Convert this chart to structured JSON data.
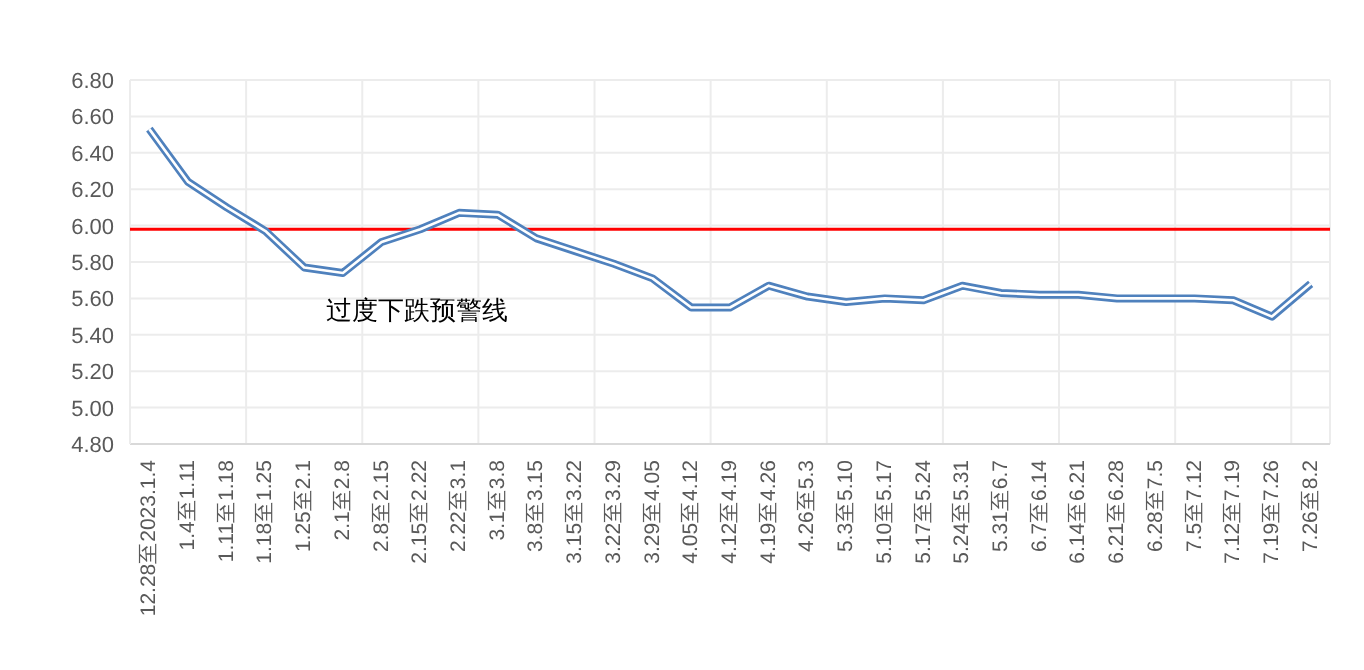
{
  "chart_data": {
    "type": "line",
    "categories": [
      "12.28至2023.1.4",
      "1.4至1.11",
      "1.11至1.18",
      "1.18至1.25",
      "1.25至2.1",
      "2.1至2.8",
      "2.8至2.15",
      "2.15至2.22",
      "2.22至3.1",
      "3.1至3.8",
      "3.8至3.15",
      "3.15至3.22",
      "3.22至3.29",
      "3.29至4.05",
      "4.05至4.12",
      "4.12至4.19",
      "4.19至4.26",
      "4.26至5.3",
      "5.3至5.10",
      "5.10至5.17",
      "5.17至5.24",
      "5.24至5.31",
      "5.31至6.7",
      "6.7至6.14",
      "6.14至6.21",
      "6.21至6.28",
      "6.28至7.5",
      "7.5至7.12",
      "7.12至7.19",
      "7.19至7.26",
      "7.26至8.2"
    ],
    "series": [
      {
        "color": "#4f81bd",
        "values": [
          6.53,
          6.24,
          6.1,
          5.97,
          5.77,
          5.74,
          5.91,
          5.98,
          6.07,
          6.06,
          5.93,
          5.86,
          5.79,
          5.71,
          5.55,
          5.55,
          5.67,
          5.61,
          5.58,
          5.6,
          5.59,
          5.67,
          5.63,
          5.62,
          5.62,
          5.6,
          5.6,
          5.6,
          5.59,
          5.5,
          5.68
        ]
      }
    ],
    "ylim": [
      4.8,
      6.8
    ],
    "yticks": [
      {
        "value": 4.8,
        "label": "4.80"
      },
      {
        "value": 5.0,
        "label": "5.00"
      },
      {
        "value": 5.2,
        "label": "5.20"
      },
      {
        "value": 5.4,
        "label": "5.40"
      },
      {
        "value": 5.6,
        "label": "5.60"
      },
      {
        "value": 5.8,
        "label": "5.80"
      },
      {
        "value": 6.0,
        "label": "6.00"
      },
      {
        "value": 6.2,
        "label": "6.20"
      },
      {
        "value": 6.4,
        "label": "6.40"
      },
      {
        "value": 6.6,
        "label": "6.60"
      },
      {
        "value": 6.8,
        "label": "6.80"
      }
    ],
    "ref_lines": [
      {
        "axis": "y",
        "value": 5.98,
        "label": "过度下跌预警线",
        "color": "#ff0000"
      }
    ],
    "grid": true,
    "marker": "none",
    "line_style": "solid"
  }
}
